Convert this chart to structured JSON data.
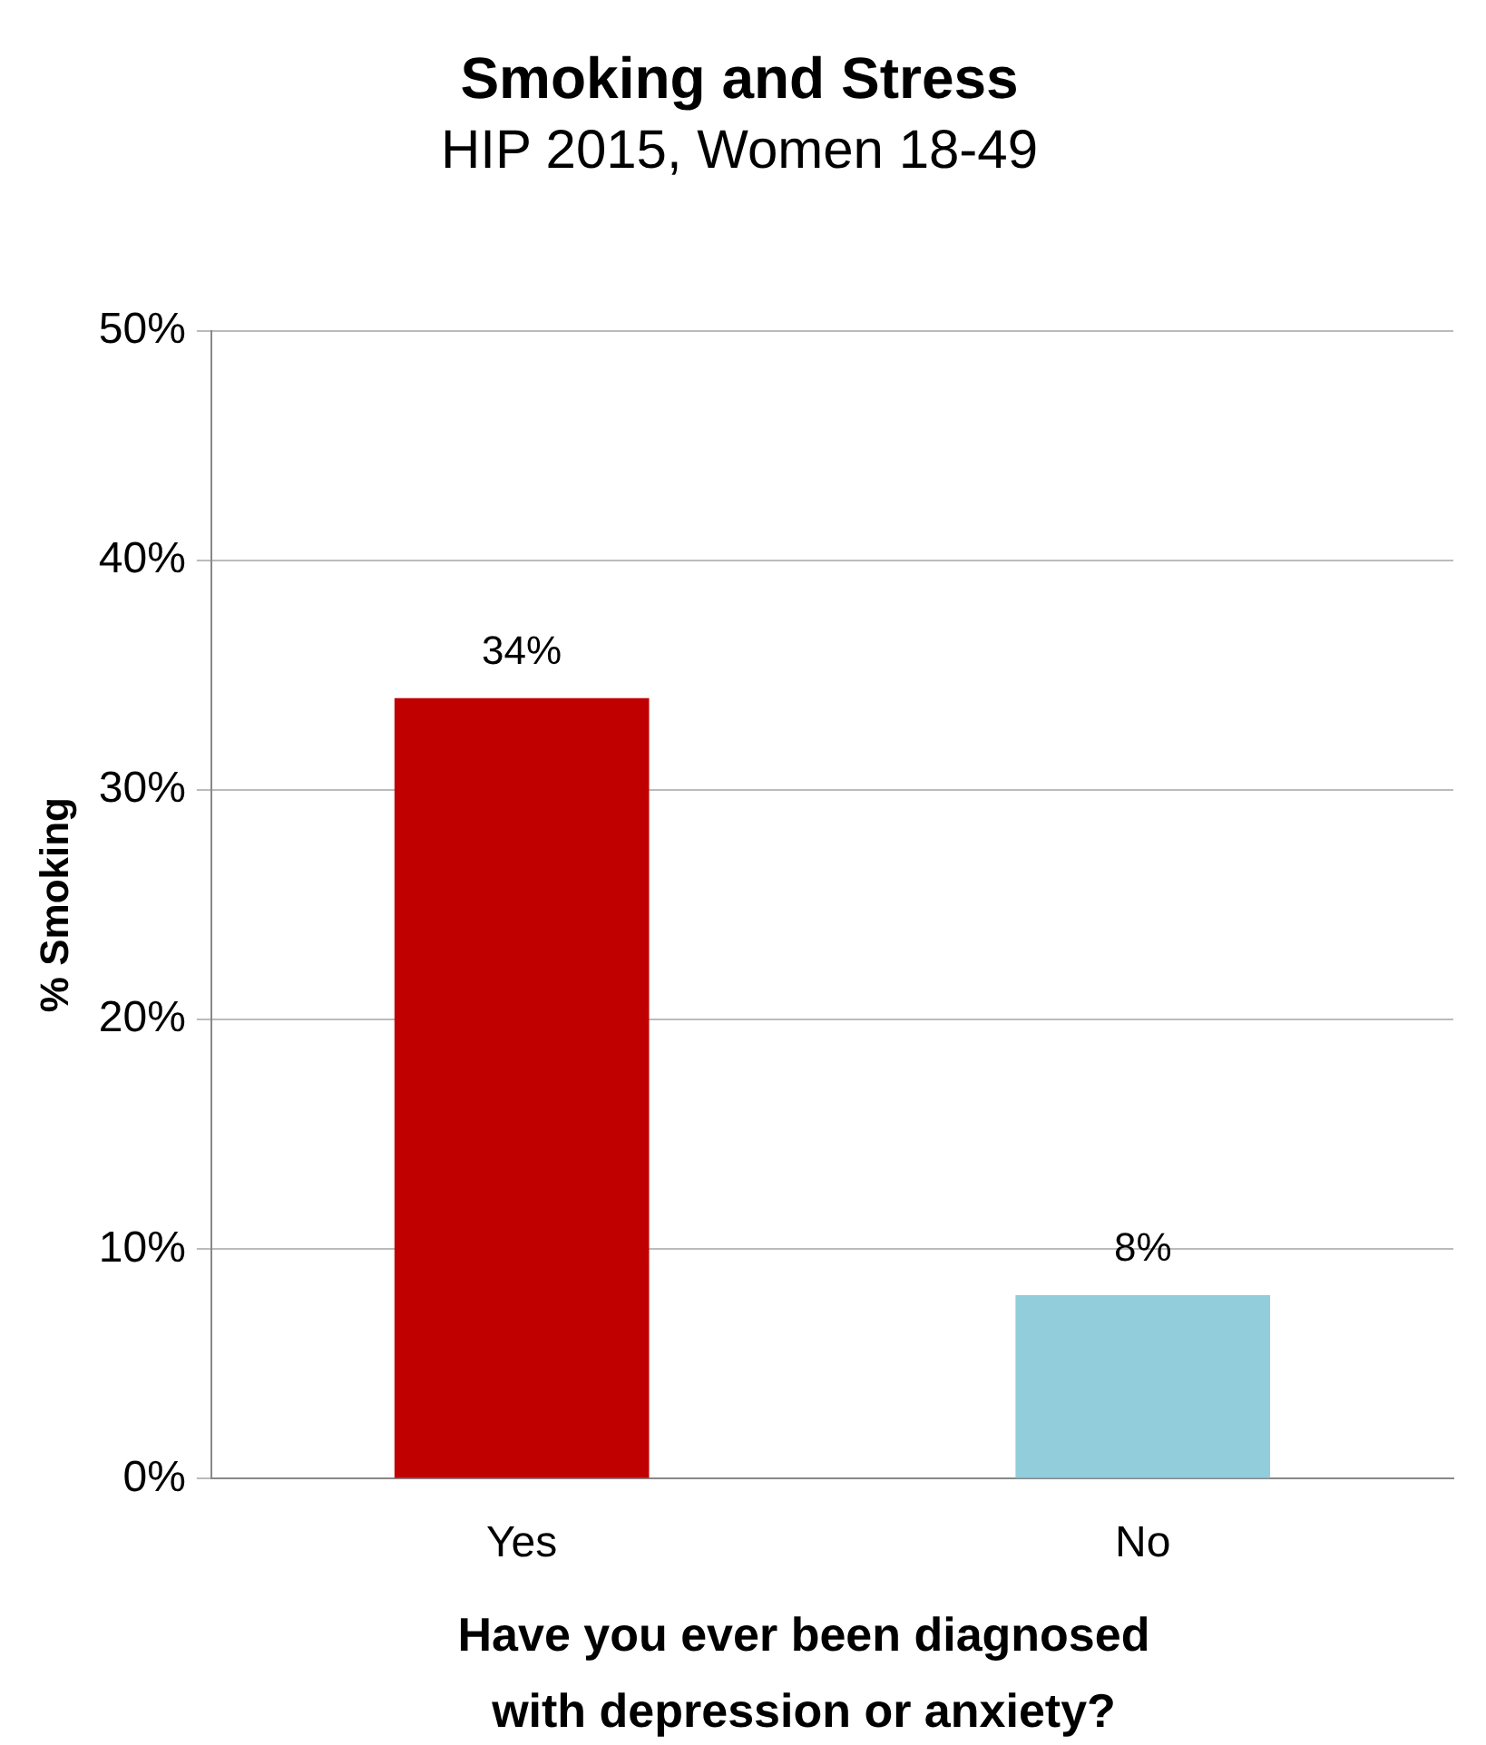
{
  "chart_data": {
    "type": "bar",
    "title": "Smoking and Stress",
    "subtitle": "HIP 2015, Women 18-49",
    "xlabel": "Have you ever been diagnosed with depression or anxiety?",
    "ylabel": "% Smoking",
    "categories": [
      "Yes",
      "No"
    ],
    "values": [
      34,
      8
    ],
    "colors": [
      "#c00000",
      "#92cddc"
    ],
    "value_labels": [
      "34%",
      "8%"
    ],
    "ylim": [
      0,
      50
    ],
    "yticks": [
      {
        "value": 0,
        "label": "0%"
      },
      {
        "value": 10,
        "label": "10%"
      },
      {
        "value": 20,
        "label": "20%"
      },
      {
        "value": 30,
        "label": "30%"
      },
      {
        "value": 40,
        "label": "40%"
      },
      {
        "value": 50,
        "label": "50%"
      }
    ],
    "grid": "y",
    "legend": false
  }
}
